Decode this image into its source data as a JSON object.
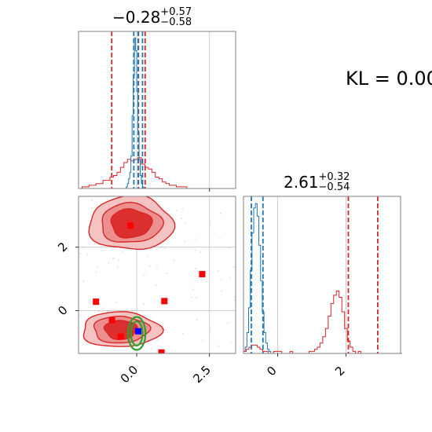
{
  "annotation": {
    "kl_text": "KL = 0.00"
  },
  "panel_titles": {
    "p1": {
      "median": "−0.28",
      "plus": "+0.57",
      "minus": "−0.58"
    },
    "p2": {
      "median": "2.61",
      "plus": "+0.32",
      "minus": "−0.54"
    }
  },
  "colors": {
    "red": "#d62728",
    "blue": "#1f77b4",
    "green": "#2ca02c",
    "marker_red": "#ff0000",
    "marker_blue": "#0000ff",
    "grid": "#cccccc",
    "axis": "#808080"
  },
  "chart_data": [
    {
      "panel": "top-left",
      "type": "histogram",
      "x_range": [
        -2.0,
        3.4
      ],
      "grid": true,
      "series": [
        {
          "color": "red",
          "bin_width": 0.12,
          "start": -2.0,
          "heights": [
            0,
            0.01,
            0.01,
            0.02,
            0.02,
            0.03,
            0.03,
            0.05,
            0.05,
            0.07,
            0.08,
            0.1,
            0.13,
            0.16,
            0.18,
            0.17,
            0.18,
            0.19,
            0.15,
            0.13,
            0.12,
            0.1,
            0.07,
            0.06,
            0.04,
            0.03,
            0.02,
            0.02,
            0.01,
            0.01,
            0.01,
            0,
            0,
            0,
            0,
            0,
            0,
            0,
            0,
            0,
            0,
            0,
            0,
            0,
            0
          ],
          "quantile_lines": [
            -0.86,
            0.06,
            0.29
          ]
        },
        {
          "color": "blue",
          "bin_width": 0.04,
          "start": -0.36,
          "heights": [
            0.01,
            0.03,
            0.06,
            0.1,
            0.2,
            0.45,
            0.7,
            0.93,
            0.85,
            0.6,
            0.35,
            0.18,
            0.08,
            0.03,
            0.01
          ],
          "quantile_lines": [
            -0.1,
            0.05,
            0.2
          ]
        }
      ]
    },
    {
      "panel": "bottom-right",
      "type": "histogram",
      "x_range": [
        -1.0,
        3.6
      ],
      "x_ticks": [
        0,
        2
      ],
      "x_tick_labels": [
        "0",
        "2"
      ],
      "grid": true,
      "series": [
        {
          "color": "blue",
          "bin_width": 0.05,
          "start": -1.0,
          "heights": [
            0.01,
            0.03,
            0.1,
            0.22,
            0.4,
            0.58,
            0.7,
            0.72,
            0.66,
            0.52,
            0.35,
            0.2,
            0.1,
            0.05,
            0.02,
            0.01
          ],
          "quantile_lines": [
            -0.77,
            -0.43
          ]
        },
        {
          "color": "red",
          "bin_width": 0.08,
          "start": -1.0,
          "heights": [
            0.01,
            0.02,
            0.03,
            0.04,
            0.04,
            0.03,
            0.02,
            0.01,
            0.01,
            0,
            0,
            0.01,
            0.01,
            0.01,
            0,
            0,
            0,
            0.01,
            0,
            0,
            0,
            0,
            0,
            0,
            0.01,
            0.01,
            0.02,
            0.03,
            0.05,
            0.08,
            0.12,
            0.18,
            0.24,
            0.28,
            0.3,
            0.27,
            0.2,
            0.12,
            0.06,
            0.03,
            0.01,
            0,
            0.01,
            0,
            0,
            0,
            0,
            0,
            0,
            0,
            0,
            0,
            0,
            0,
            0,
            0,
            0,
            0
          ],
          "quantile_lines": [
            2.07,
            2.93
          ]
        }
      ]
    },
    {
      "panel": "bottom-left",
      "type": "scatter",
      "x_range": [
        -2.0,
        3.4
      ],
      "y_range": [
        -1.35,
        3.6
      ],
      "x_ticks": [
        0.0,
        2.5
      ],
      "x_tick_labels": [
        "0.0",
        "2.5"
      ],
      "y_ticks": [
        0,
        2
      ],
      "y_tick_labels": [
        "0",
        "2"
      ],
      "grid": true,
      "red_contours": [
        {
          "cx": -0.2,
          "cy": 2.75,
          "rx": [
            1.45,
            1.05,
            0.7
          ],
          "ry": [
            0.85,
            0.62,
            0.45
          ]
        },
        {
          "cx": -0.55,
          "cy": -0.6,
          "rx": [
            1.35,
            0.95,
            0.55
          ],
          "ry": [
            0.55,
            0.42,
            0.3
          ]
        }
      ],
      "green_contours": {
        "cx": 0.0,
        "cy": -0.72,
        "rx": [
          0.3,
          0.2
        ],
        "ry": [
          0.52,
          0.38
        ]
      },
      "red_markers": [
        {
          "x": -1.4,
          "y": 0.28
        },
        {
          "x": -0.85,
          "y": -0.3
        },
        {
          "x": -0.55,
          "y": -0.82
        },
        {
          "x": -0.22,
          "y": 2.68
        },
        {
          "x": 0.95,
          "y": 0.3
        },
        {
          "x": 2.25,
          "y": 1.15
        },
        {
          "x": 0.85,
          "y": -1.32
        }
      ],
      "blue_marker": {
        "x": 0.05,
        "y": -0.65
      }
    }
  ]
}
